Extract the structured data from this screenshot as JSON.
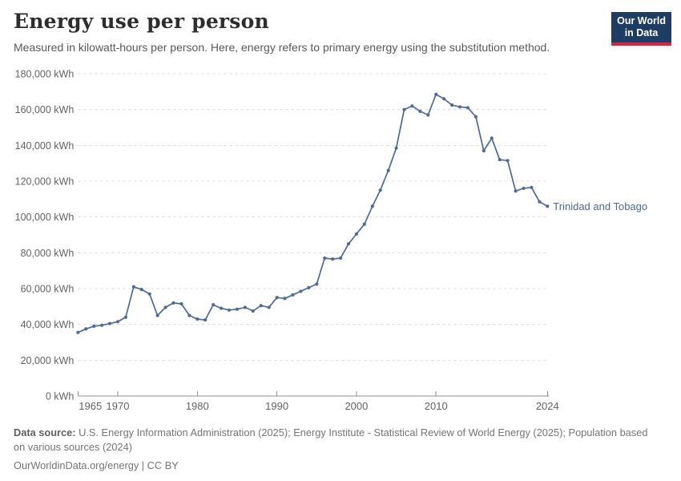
{
  "header": {
    "title": "Energy use per person",
    "subtitle": "Measured in kilowatt-hours per person. Here, energy refers to primary energy using the substitution method."
  },
  "logo": {
    "line1": "Our World",
    "line2": "in Data",
    "bg_color": "#1d3d63",
    "accent_color": "#e0233c"
  },
  "chart_data": {
    "type": "line",
    "title": "Energy use per person",
    "unit": "kWh",
    "x_range": [
      1965,
      2024
    ],
    "x": [
      1965,
      1966,
      1967,
      1968,
      1969,
      1970,
      1971,
      1972,
      1973,
      1974,
      1975,
      1976,
      1977,
      1978,
      1979,
      1980,
      1981,
      1982,
      1983,
      1984,
      1985,
      1986,
      1987,
      1988,
      1989,
      1990,
      1991,
      1992,
      1993,
      1994,
      1995,
      1996,
      1997,
      1998,
      1999,
      2000,
      2001,
      2002,
      2003,
      2004,
      2005,
      2006,
      2007,
      2008,
      2009,
      2010,
      2011,
      2012,
      2013,
      2014,
      2015,
      2016,
      2017,
      2018,
      2019,
      2020,
      2021,
      2022,
      2023,
      2024
    ],
    "series": [
      {
        "name": "Trinidad and Tobago",
        "color": "#4c6a9c",
        "values": [
          35500,
          37500,
          39000,
          39500,
          40500,
          41500,
          44000,
          61000,
          59500,
          57000,
          45000,
          49500,
          52000,
          51500,
          45000,
          43000,
          42500,
          51000,
          49000,
          48000,
          48500,
          49500,
          47500,
          50500,
          49500,
          55000,
          54500,
          56500,
          58500,
          60500,
          62500,
          77000,
          76500,
          77000,
          85000,
          90500,
          96000,
          106000,
          115000,
          126000,
          138500,
          160000,
          162000,
          159000,
          157000,
          168500,
          166000,
          162500,
          161500,
          161000,
          156000,
          137000,
          144000,
          132000,
          131500,
          114500,
          116000,
          116500,
          108500,
          106000
        ]
      }
    ],
    "ylim": [
      0,
      180000
    ],
    "ytick_step": 20000,
    "ytick_suffix": " kWh",
    "xticks": [
      1965,
      1970,
      1980,
      1990,
      2000,
      2010,
      2024
    ],
    "grid": "horizontal-dashed",
    "legend_position": "end-of-line-label",
    "entity_label": "Trinidad and Tobago",
    "colors": {
      "grid": "#d9d9d9",
      "axis": "#8f8f8f",
      "tick_label": "#636363"
    }
  },
  "footer": {
    "source_prefix": "Data source:",
    "source_line1": "U.S. Energy Information Administration (2025); Energy Institute - Statistical Review of World Energy (2025); Population based",
    "source_line2": "on various sources (2024)",
    "link_text": "OurWorldinData.org/energy | CC BY"
  }
}
